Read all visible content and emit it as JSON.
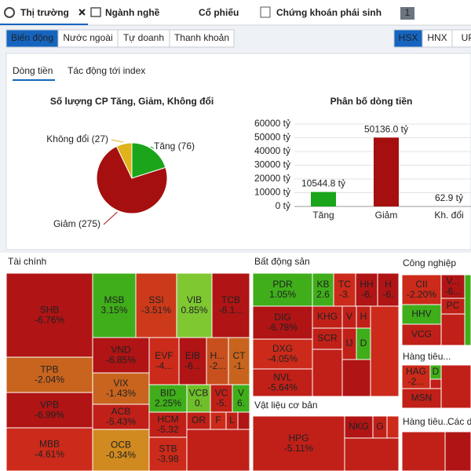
{
  "tabs": {
    "items": [
      "Thị trường",
      "Ngành nghề",
      "Cổ phiếu",
      "Chứng khoán phái sinh"
    ],
    "badge": "1"
  },
  "subtabs": [
    "Biến động",
    "Nước ngoài",
    "Tự doanh",
    "Thanh khoản"
  ],
  "exchanges": [
    "HSX",
    "HNX",
    "UP"
  ],
  "panel_tabs": [
    "Dòng tiền",
    "Tác động tới index"
  ],
  "chart_data": [
    {
      "type": "pie",
      "title": "Số lượng CP Tăng, Giảm, Không đổi",
      "values": [
        76,
        275,
        27
      ],
      "value_labels": [
        "Tăng (76)",
        "Giảm (275)",
        "Không đổi (27)"
      ],
      "colors": [
        "#1aa51a",
        "#a50f0f",
        "#e0b31a"
      ]
    },
    {
      "type": "bar",
      "title": "Phân bố dòng tiền",
      "categories": [
        "Tăng",
        "Giảm",
        "Kh. đổi"
      ],
      "values": [
        10544.8,
        50136.0,
        62.9
      ],
      "value_labels": [
        "10544.8 tỷ",
        "50136.0 tỷ",
        "62.9 tỷ"
      ],
      "colors": [
        "#1aa51a",
        "#a50f0f",
        "#999999"
      ],
      "ylim": [
        0,
        60000
      ],
      "yticks": [
        {
          "value": 0,
          "label": "0 tỷ"
        },
        {
          "value": 10000,
          "label": "10000 tỷ"
        },
        {
          "value": 20000,
          "label": "20000 tỷ"
        },
        {
          "value": 30000,
          "label": "30000 tỷ"
        },
        {
          "value": 40000,
          "label": "40000 tỷ"
        },
        {
          "value": 50000,
          "label": "50000 tỷ"
        },
        {
          "value": 60000,
          "label": "60000 tỷ"
        }
      ],
      "grid": true
    }
  ],
  "treemap": {
    "sectors": [
      {
        "name": "Tài chính",
        "cells": [
          {
            "ticker": "SHB",
            "change": "-6.76%",
            "color": "#b01414"
          },
          {
            "ticker": "TPB",
            "change": "-2.04%",
            "color": "#c8641e"
          },
          {
            "ticker": "VPB",
            "change": "-6.99%",
            "color": "#b01414"
          },
          {
            "ticker": "MBB",
            "change": "-4.61%",
            "color": "#cc2a1a"
          },
          {
            "ticker": "MSB",
            "change": "3.15%",
            "color": "#3fae1a"
          },
          {
            "ticker": "SSI",
            "change": "-3.51%",
            "color": "#cc3a1a"
          },
          {
            "ticker": "VIB",
            "change": "0.85%",
            "color": "#7fc832"
          },
          {
            "ticker": "TCB",
            "change": "-6.1...",
            "color": "#b01414"
          },
          {
            "ticker": "VND",
            "change": "-6.85%",
            "color": "#b01414"
          },
          {
            "ticker": "VIX",
            "change": "-1.43%",
            "color": "#c8641e"
          },
          {
            "ticker": "ACB",
            "change": "-5.43%",
            "color": "#c02018"
          },
          {
            "ticker": "OCB",
            "change": "-0.34%",
            "color": "#d08a20"
          },
          {
            "ticker": "EVF",
            "change": "-4...",
            "color": "#cc2a1a"
          },
          {
            "ticker": "EIB",
            "change": "-6...",
            "color": "#b01414"
          },
          {
            "ticker": "H...",
            "change": "-2...",
            "color": "#c8501e"
          },
          {
            "ticker": "CT",
            "change": "-1.",
            "color": "#c8641e"
          },
          {
            "ticker": "BID",
            "change": "2.25%",
            "color": "#3fae1a"
          },
          {
            "ticker": "VCB",
            "change": "0.",
            "color": "#6fbf2a"
          },
          {
            "ticker": "VC",
            "change": "-5.",
            "color": "#c02018"
          },
          {
            "ticker": "V",
            "change": "6.",
            "color": "#3fae1a"
          },
          {
            "ticker": "HCM",
            "change": "-5.32",
            "color": "#c02018"
          },
          {
            "ticker": "OR",
            "color": "#c02018"
          },
          {
            "ticker": "F",
            "color": "#cc2a1a"
          },
          {
            "ticker": "L",
            "color": "#c02018"
          },
          {
            "ticker": "STB",
            "change": "-3.98",
            "color": "#cc2a1a"
          }
        ]
      },
      {
        "name": "Bất động sản",
        "cells": [
          {
            "ticker": "PDR",
            "change": "1.05%",
            "color": "#3fae1a"
          },
          {
            "ticker": "KB",
            "change": "2.6",
            "color": "#3fae1a"
          },
          {
            "ticker": "TC",
            "change": "-3.",
            "color": "#cc2a1a"
          },
          {
            "ticker": "HH",
            "change": "-6.",
            "color": "#b01414"
          },
          {
            "ticker": "H",
            "change": "-6.",
            "color": "#b01414"
          },
          {
            "ticker": "DIG",
            "change": "-6.78%",
            "color": "#b01414"
          },
          {
            "ticker": "KHG",
            "color": "#c02018"
          },
          {
            "ticker": "V",
            "color": "#c02018"
          },
          {
            "ticker": "H",
            "color": "#c02018"
          },
          {
            "ticker": "SCR",
            "color": "#c02018"
          },
          {
            "ticker": "DXG",
            "change": "-4.05%",
            "color": "#cc2a1a"
          },
          {
            "ticker": "IJ",
            "color": "#c02018"
          },
          {
            "ticker": "D",
            "color": "#3fae1a"
          },
          {
            "ticker": "NVL",
            "change": "-5.64%",
            "color": "#c02018"
          }
        ]
      },
      {
        "name": "Vật liệu cơ bản",
        "cells": [
          {
            "ticker": "HPG",
            "change": "-5.11%",
            "color": "#c02018"
          },
          {
            "ticker": "NKG",
            "color": "#b01414"
          },
          {
            "ticker": "G",
            "color": "#c02018"
          }
        ]
      },
      {
        "name": "Công nghiệp",
        "cells": [
          {
            "ticker": "CII",
            "change": "-2.20%",
            "color": "#cc2a1a"
          },
          {
            "ticker": "V...",
            "change": "-6...",
            "color": "#b01414"
          },
          {
            "ticker": "PC",
            "color": "#c02018"
          },
          {
            "ticker": "HHV",
            "color": "#3fae1a"
          },
          {
            "ticker": "VCG",
            "color": "#c02018"
          }
        ]
      },
      {
        "name": "Hàng tiêu...",
        "cells": [
          {
            "ticker": "HAG",
            "change": "-2...",
            "color": "#cc2a1a"
          },
          {
            "ticker": "D",
            "color": "#3fae1a"
          },
          {
            "ticker": "MSN",
            "color": "#c02018"
          }
        ]
      },
      {
        "name": "Hàng tiêu...",
        "cells": []
      },
      {
        "name": "Các d...",
        "cells": []
      }
    ]
  }
}
